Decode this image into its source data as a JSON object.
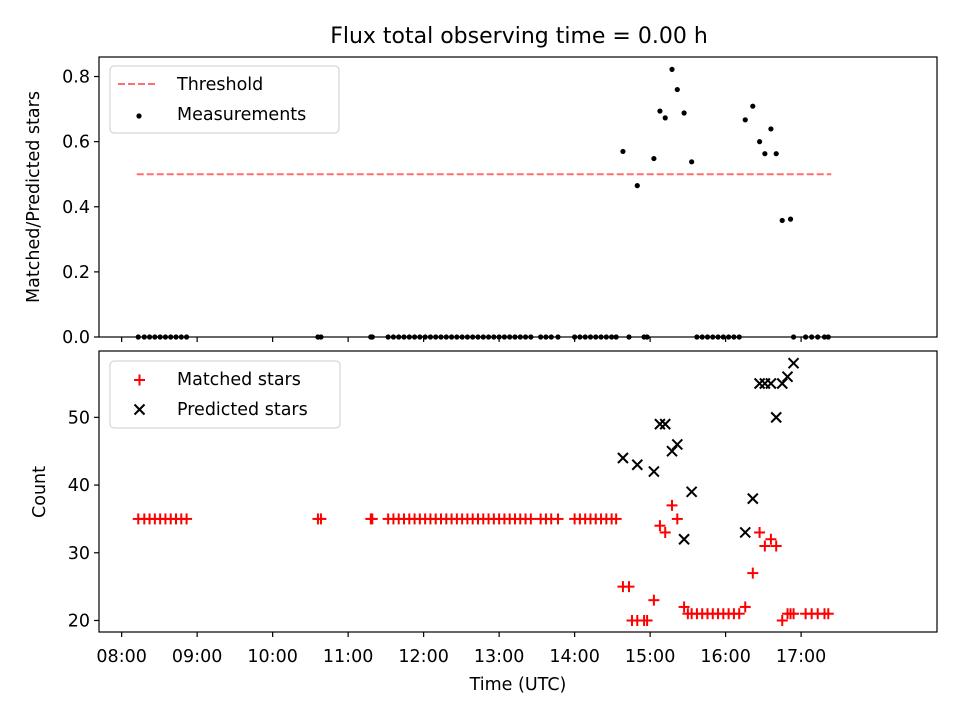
{
  "figure": {
    "title": "Flux total observing time = 0.00 h"
  },
  "chart_data": [
    {
      "type": "scatter",
      "ylabel": "Matched/Predicted stars",
      "xlim": [
        7.7,
        18.8
      ],
      "ylim": [
        0,
        0.86
      ],
      "yticks": [
        0.0,
        0.2,
        0.4,
        0.6,
        0.8
      ],
      "ytick_labels": [
        "0.0",
        "0.2",
        "0.4",
        "0.6",
        "0.8"
      ],
      "legend": {
        "placement": "upper-left",
        "entries": [
          "Threshold",
          "Measurements"
        ]
      },
      "threshold": {
        "name": "Threshold",
        "value": 0.5,
        "x_range": [
          8.2,
          17.4
        ],
        "color": "#ff6f6f"
      },
      "measurements": {
        "name": "Measurements",
        "color": "#000000",
        "x": [
          8.22,
          8.3,
          8.37,
          8.44,
          8.51,
          8.58,
          8.65,
          8.72,
          8.79,
          8.86,
          10.6,
          10.64,
          11.3,
          11.32,
          11.53,
          11.6,
          11.67,
          11.74,
          11.81,
          11.88,
          11.95,
          12.02,
          12.09,
          12.16,
          12.23,
          12.3,
          12.37,
          12.44,
          12.51,
          12.58,
          12.65,
          12.72,
          12.79,
          12.86,
          12.93,
          13.0,
          13.07,
          13.14,
          13.21,
          13.28,
          13.35,
          13.42,
          13.55,
          13.62,
          13.69,
          13.78,
          14.0,
          14.07,
          14.14,
          14.21,
          14.28,
          14.35,
          14.42,
          14.49,
          14.55,
          14.64,
          14.72,
          14.83,
          14.92,
          14.96,
          15.05,
          15.13,
          15.2,
          15.29,
          15.36,
          15.45,
          15.55,
          15.62,
          15.69,
          15.76,
          15.83,
          15.9,
          15.97,
          16.04,
          16.11,
          16.18,
          16.26,
          16.36,
          16.45,
          16.52,
          16.6,
          16.67,
          16.75,
          16.86,
          16.9,
          17.06,
          17.14,
          17.22,
          17.31,
          17.36
        ],
        "y": [
          0,
          0,
          0,
          0,
          0,
          0,
          0,
          0,
          0,
          0,
          0,
          0,
          0,
          0,
          0,
          0,
          0,
          0,
          0,
          0,
          0,
          0,
          0,
          0,
          0,
          0,
          0,
          0,
          0,
          0,
          0,
          0,
          0,
          0,
          0,
          0,
          0,
          0,
          0,
          0,
          0,
          0,
          0,
          0,
          0,
          0,
          0,
          0,
          0,
          0,
          0,
          0,
          0,
          0,
          0,
          0.57,
          0,
          0.465,
          0,
          0,
          0.548,
          0.694,
          0.673,
          0.822,
          0.76,
          0.688,
          0.538,
          0,
          0,
          0,
          0,
          0,
          0,
          0,
          0,
          0,
          0.667,
          0.709,
          0.6,
          0.563,
          0.639,
          0.563,
          0.358,
          0.362,
          0,
          0,
          0,
          0,
          0,
          0
        ]
      }
    },
    {
      "type": "scatter",
      "xlabel": "Time (UTC)",
      "ylabel": "Count",
      "xlim": [
        7.7,
        18.8
      ],
      "ylim": [
        18.3,
        59.8
      ],
      "xticks": [
        8,
        9,
        10,
        11,
        12,
        13,
        14,
        15,
        16,
        17
      ],
      "xtick_labels": [
        "08:00",
        "09:00",
        "10:00",
        "11:00",
        "12:00",
        "13:00",
        "14:00",
        "15:00",
        "16:00",
        "17:00"
      ],
      "yticks": [
        20,
        30,
        40,
        50
      ],
      "ytick_labels": [
        "20",
        "30",
        "40",
        "50"
      ],
      "legend": {
        "placement": "upper-left",
        "entries": [
          "Matched stars",
          "Predicted stars"
        ]
      },
      "series": [
        {
          "name": "Matched stars",
          "marker": "+",
          "color": "#ff0000",
          "x": [
            8.22,
            8.3,
            8.37,
            8.44,
            8.51,
            8.58,
            8.65,
            8.72,
            8.79,
            8.86,
            10.6,
            10.64,
            11.3,
            11.32,
            11.53,
            11.6,
            11.67,
            11.74,
            11.81,
            11.88,
            11.95,
            12.02,
            12.09,
            12.16,
            12.23,
            12.3,
            12.37,
            12.44,
            12.51,
            12.58,
            12.65,
            12.72,
            12.79,
            12.86,
            12.93,
            13.0,
            13.07,
            13.14,
            13.21,
            13.28,
            13.35,
            13.42,
            13.55,
            13.62,
            13.69,
            13.78,
            14.0,
            14.07,
            14.14,
            14.21,
            14.28,
            14.35,
            14.42,
            14.49,
            14.55,
            14.64,
            14.72,
            14.76,
            14.83,
            14.92,
            14.96,
            15.05,
            15.13,
            15.2,
            15.29,
            15.36,
            15.45,
            15.5,
            15.55,
            15.62,
            15.69,
            15.76,
            15.83,
            15.9,
            15.97,
            16.04,
            16.11,
            16.18,
            16.26,
            16.36,
            16.45,
            16.52,
            16.6,
            16.67,
            16.75,
            16.82,
            16.86,
            16.9,
            17.06,
            17.14,
            17.22,
            17.31,
            17.36
          ],
          "y": [
            35,
            35,
            35,
            35,
            35,
            35,
            35,
            35,
            35,
            35,
            35,
            35,
            35,
            35,
            35,
            35,
            35,
            35,
            35,
            35,
            35,
            35,
            35,
            35,
            35,
            35,
            35,
            35,
            35,
            35,
            35,
            35,
            35,
            35,
            35,
            35,
            35,
            35,
            35,
            35,
            35,
            35,
            35,
            35,
            35,
            35,
            35,
            35,
            35,
            35,
            35,
            35,
            35,
            35,
            35,
            25,
            25,
            20,
            20,
            20,
            20,
            23,
            34,
            33,
            37,
            35,
            22,
            21,
            21,
            21,
            21,
            21,
            21,
            21,
            21,
            21,
            21,
            21,
            22,
            27,
            33,
            31,
            32,
            31,
            20,
            21,
            21,
            21,
            21,
            21,
            21,
            21,
            21
          ]
        },
        {
          "name": "Predicted stars",
          "marker": "x",
          "color": "#000000",
          "x": [
            14.64,
            14.83,
            15.05,
            15.13,
            15.2,
            15.29,
            15.36,
            15.45,
            15.55,
            16.26,
            16.36,
            16.45,
            16.52,
            16.6,
            16.67,
            16.75,
            16.82,
            16.9
          ],
          "y": [
            44,
            43,
            42,
            49,
            49,
            45,
            46,
            32,
            39,
            33,
            38,
            55,
            55,
            55,
            50,
            55,
            56,
            58
          ]
        }
      ]
    }
  ]
}
